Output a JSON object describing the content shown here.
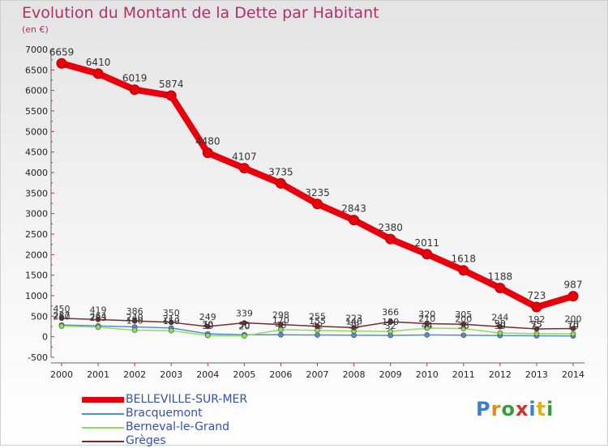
{
  "title": "Evolution du Montant de la Dette par Habitant",
  "unit": "(en €)",
  "logo": "Proxiti",
  "chart_data": {
    "type": "line",
    "title": "Evolution du Montant de la Dette par Habitant",
    "ylabel": "(en €)",
    "ylim": [
      -500,
      7000
    ],
    "yticks": [
      -500,
      0,
      500,
      1000,
      1500,
      2000,
      2500,
      3000,
      3500,
      4000,
      4500,
      5000,
      5500,
      6000,
      6500,
      7000
    ],
    "x": [
      "2000",
      "2001",
      "2002",
      "2003",
      "2004",
      "2005",
      "2006",
      "2007",
      "2008",
      "2009",
      "2010",
      "2011",
      "2012",
      "2013",
      "2014"
    ],
    "grid": false,
    "legend_position": "bottom-left",
    "series": [
      {
        "name": "BELLEVILLE-SUR-MER",
        "color": "#e8000d",
        "values": [
          6659,
          6410,
          6019,
          5874,
          4480,
          4107,
          3735,
          3235,
          2843,
          2380,
          2011,
          1618,
          1188,
          723,
          987
        ],
        "labels": [
          "6659",
          "6410",
          "6019",
          "5874",
          "4480",
          "4107",
          "3735",
          "3235",
          "2843",
          "2380",
          "2011",
          "1618",
          "1188",
          "723",
          "987"
        ]
      },
      {
        "name": "Bracquemont",
        "color": "#4f8fd0",
        "values": [
          287,
          264,
          240,
          213,
          70,
          50,
          48,
          42,
          38,
          32,
          44,
          38,
          30,
          22,
          19
        ],
        "labels": [
          "287",
          "264",
          "240",
          "213",
          "70",
          "50",
          "48",
          "42",
          "38",
          "32",
          "44",
          "38",
          "30",
          "22",
          "19"
        ]
      },
      {
        "name": "Berneval-le-Grand",
        "color": "#8fdc5a",
        "values": [
          260,
          233,
          160,
          150,
          30,
          20,
          170,
          155,
          140,
          130,
          210,
          200,
          90,
          75,
          70
        ],
        "labels": [
          "260",
          "233",
          "160",
          "150",
          "30",
          "20",
          "170",
          "155",
          "140",
          "130",
          "210",
          "200",
          "90",
          "75",
          "70"
        ]
      },
      {
        "name": "Grèges",
        "color": "#7a2a2a",
        "values": [
          450,
          419,
          386,
          350,
          249,
          339,
          298,
          255,
          223,
          366,
          320,
          305,
          244,
          192,
          200
        ],
        "labels": [
          "450",
          "419",
          "386",
          "350",
          "249",
          "339",
          "298",
          "255",
          "223",
          "366",
          "320",
          "305",
          "244",
          "192",
          "200"
        ]
      }
    ]
  }
}
